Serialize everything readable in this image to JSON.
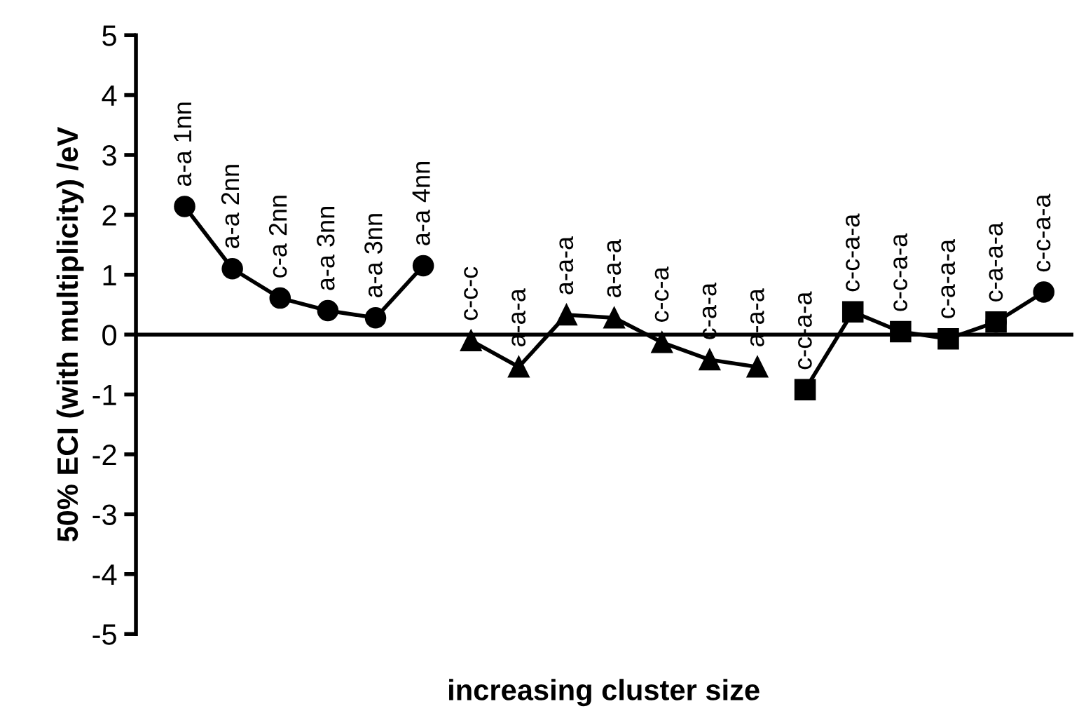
{
  "chart_data": {
    "type": "line",
    "ylabel": "50% ECI (with multiplicity) /eV",
    "xlabel": "increasing cluster size",
    "categories": [
      "a-a 1nn",
      "a-a 2nn",
      "c-a 2nn",
      "a-a 3nn",
      "a-a 3nn",
      "a-a 4nn",
      "c-c-c",
      "a-a-a",
      "a-a-a",
      "a-a-a",
      "c-c-a",
      "c-a-a",
      "a-a-a",
      "c-c-a-a",
      "c-c-a-a",
      "c-c-a-a",
      "c-a-a-a",
      "c-a-a-a",
      "c-c-a-a"
    ],
    "series": [
      {
        "color": "#000000",
        "marker": "circle",
        "values": [
          2.14,
          1.1,
          0.61,
          0.4,
          0.28,
          1.15,
          null,
          null,
          null,
          null,
          null,
          null,
          null,
          null,
          null,
          null,
          null,
          null,
          null
        ]
      },
      {
        "color": "#000000",
        "marker": "triangle",
        "values": [
          null,
          null,
          null,
          null,
          null,
          null,
          -0.1,
          -0.54,
          0.33,
          0.28,
          -0.13,
          -0.42,
          -0.54,
          null,
          null,
          null,
          null,
          null,
          null
        ]
      },
      {
        "color": "#000000",
        "marker": "circle",
        "values": [
          null,
          null,
          null,
          null,
          null,
          null,
          null,
          null,
          null,
          null,
          null,
          null,
          null,
          null,
          null,
          null,
          null,
          0.21,
          0.71
        ]
      },
      {
        "color": "#000000",
        "marker": "square",
        "values": [
          null,
          null,
          null,
          null,
          null,
          null,
          null,
          null,
          null,
          null,
          null,
          null,
          null,
          -0.92,
          0.38,
          0.05,
          -0.07,
          0.21,
          null
        ]
      }
    ],
    "ylim": [
      -5,
      5
    ],
    "yticks": [
      -5,
      -4,
      -3,
      -2,
      -1,
      0,
      1,
      2,
      3,
      4,
      5
    ],
    "tick_labels": "y",
    "grid": false,
    "legend": false,
    "line_style": "solid"
  }
}
